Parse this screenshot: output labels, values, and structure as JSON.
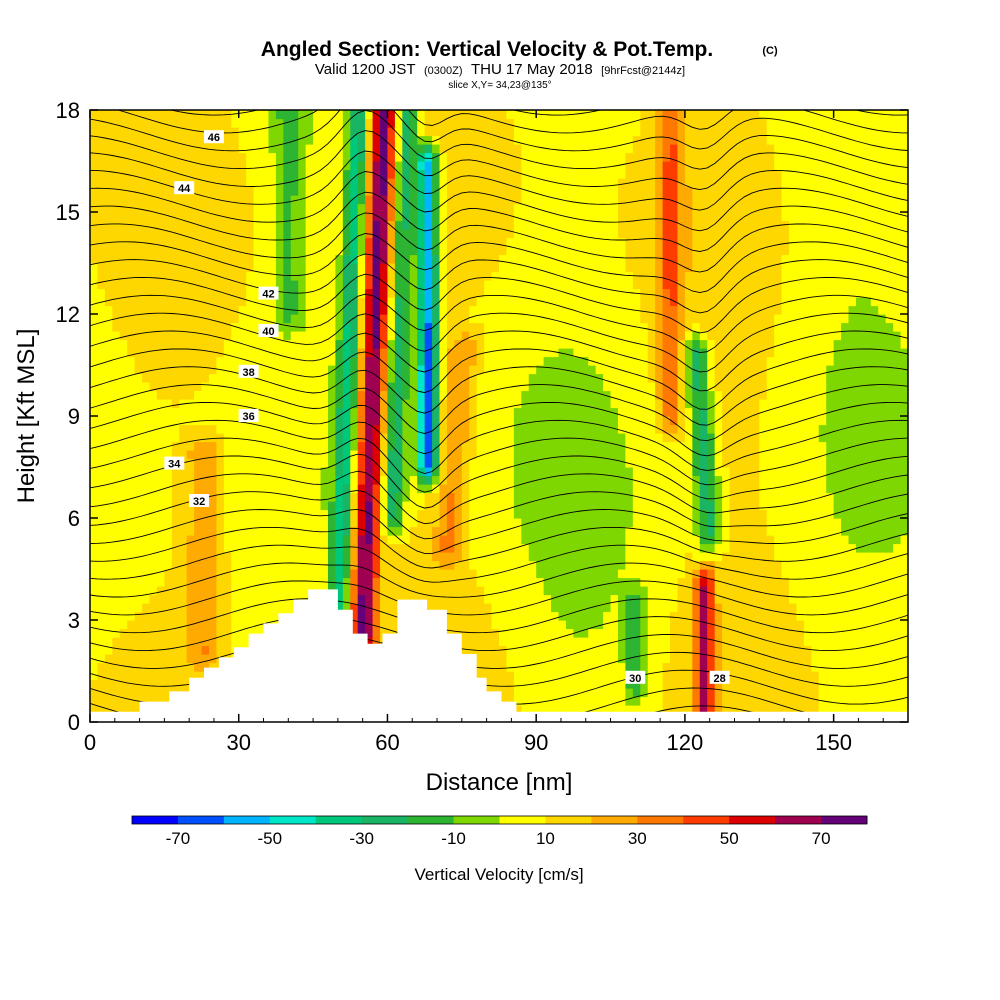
{
  "chart_data": {
    "type": "heatmap",
    "title": "Angled Section: Vertical Velocity & Pot.Temp.",
    "title_mark": "(C)",
    "subtitle_parts": [
      "Valid 1200 JST",
      "(0300Z)",
      "THU 17 May 2018",
      "[9hrFcst@2144z]"
    ],
    "slice_label": "slice X,Y= 34,23@135°",
    "xlabel": "Distance [nm]",
    "ylabel": "Height [Kft MSL]",
    "xlim": [
      0,
      165
    ],
    "ylim": [
      0,
      18
    ],
    "x_ticks": [
      0,
      30,
      60,
      90,
      120,
      150
    ],
    "y_ticks": [
      0,
      3,
      6,
      9,
      12,
      15,
      18
    ],
    "colorbar": {
      "label": "Vertical Velocity [cm/s]",
      "tick_values": [
        -70,
        -50,
        -30,
        -10,
        10,
        30,
        50,
        70
      ],
      "bounds": [
        -80,
        -70,
        -60,
        -50,
        -40,
        -30,
        -20,
        -10,
        0,
        10,
        20,
        30,
        40,
        50,
        60,
        70,
        80
      ],
      "colors": [
        "#0000ff",
        "#0050ff",
        "#00b4ff",
        "#00e6c8",
        "#00c87a",
        "#19b464",
        "#2db432",
        "#7ed700",
        "#ffff00",
        "#ffd700",
        "#ffaa00",
        "#ff7800",
        "#ff3c00",
        "#dc0000",
        "#a00050",
        "#640078"
      ]
    },
    "velocity_columns": [
      {
        "x": 55,
        "amp": 65,
        "width": 2.6,
        "z_low": 2.5,
        "z_high": 18.5,
        "lean": 0.28
      },
      {
        "x": 50,
        "amp": -40,
        "width": 2.0,
        "z_low": 3.0,
        "z_high": 18.5,
        "lean": 0.28
      },
      {
        "x": 61,
        "amp": -35,
        "width": 2.2,
        "z_low": 6.0,
        "z_high": 18.5,
        "lean": 0.25
      },
      {
        "x": 68,
        "amp": -72,
        "width": 2.0,
        "z_low": 7.5,
        "z_high": 16.5,
        "lean": 0.0
      },
      {
        "x": 72,
        "amp": 22,
        "width": 3.0,
        "z_low": 5.0,
        "z_high": 11.0,
        "lean": 0.55
      },
      {
        "x": 124,
        "amp": 55,
        "width": 1.8,
        "z_low": 0.4,
        "z_high": 4.0,
        "lean": 0.0
      },
      {
        "x": 117,
        "amp": 28,
        "width": 2.5,
        "z_low": 9.0,
        "z_high": 18.5,
        "lean": 0.0
      },
      {
        "x": 125,
        "amp": -35,
        "width": 2.5,
        "z_low": 5.5,
        "z_high": 11.0,
        "lean": -0.5
      },
      {
        "x": 110,
        "amp": -22,
        "width": 2.0,
        "z_low": 1.0,
        "z_high": 3.5,
        "lean": 0.0
      },
      {
        "x": 23,
        "amp": 20,
        "width": 4.0,
        "z_low": 2.0,
        "z_high": 8.0,
        "lean": 0.0
      },
      {
        "x": 40,
        "amp": -18,
        "width": 3.0,
        "z_low": 12.0,
        "z_high": 18.5,
        "lean": 0.0
      }
    ],
    "isentropes": [
      {
        "theta": 28,
        "label_x": 127,
        "label_z": 1.3
      },
      {
        "theta": 30,
        "label_x": 110,
        "label_z": 1.3
      },
      {
        "theta": 32,
        "label_x": 22,
        "label_z": 6.5
      },
      {
        "theta": 34,
        "label_x": 17,
        "label_z": 7.6
      },
      {
        "theta": 36,
        "label_x": 32,
        "label_z": 9.0
      },
      {
        "theta": 38,
        "label_x": 32,
        "label_z": 10.3
      },
      {
        "theta": 40,
        "label_x": 36,
        "label_z": 11.5
      },
      {
        "theta": 42,
        "label_x": 36,
        "label_z": 12.6
      },
      {
        "theta": 44,
        "label_x": 19,
        "label_z": 15.7
      },
      {
        "theta": 46,
        "label_x": 25,
        "label_z": 17.2
      }
    ],
    "terrain": [
      [
        0,
        0.3
      ],
      [
        10,
        0.3
      ],
      [
        10,
        0.6
      ],
      [
        16,
        0.6
      ],
      [
        16,
        0.9
      ],
      [
        20,
        0.9
      ],
      [
        20,
        1.3
      ],
      [
        23,
        1.3
      ],
      [
        23,
        1.6
      ],
      [
        26,
        1.6
      ],
      [
        26,
        1.9
      ],
      [
        29,
        1.9
      ],
      [
        29,
        2.2
      ],
      [
        32,
        2.2
      ],
      [
        32,
        2.6
      ],
      [
        35,
        2.6
      ],
      [
        35,
        2.9
      ],
      [
        38,
        2.9
      ],
      [
        38,
        3.2
      ],
      [
        41,
        3.2
      ],
      [
        41,
        3.6
      ],
      [
        44,
        3.6
      ],
      [
        44,
        3.9
      ],
      [
        50,
        3.9
      ],
      [
        50,
        3.3
      ],
      [
        53,
        3.3
      ],
      [
        53,
        2.6
      ],
      [
        56,
        2.6
      ],
      [
        56,
        2.3
      ],
      [
        59,
        2.3
      ],
      [
        59,
        2.6
      ],
      [
        62,
        2.6
      ],
      [
        62,
        3.6
      ],
      [
        68,
        3.6
      ],
      [
        68,
        3.3
      ],
      [
        72,
        3.3
      ],
      [
        72,
        2.6
      ],
      [
        75,
        2.6
      ],
      [
        75,
        2.0
      ],
      [
        78,
        2.0
      ],
      [
        78,
        1.3
      ],
      [
        80,
        1.3
      ],
      [
        80,
        0.9
      ],
      [
        83,
        0.9
      ],
      [
        83,
        0.6
      ],
      [
        86,
        0.6
      ],
      [
        86,
        0.3
      ],
      [
        165,
        0.3
      ]
    ]
  }
}
